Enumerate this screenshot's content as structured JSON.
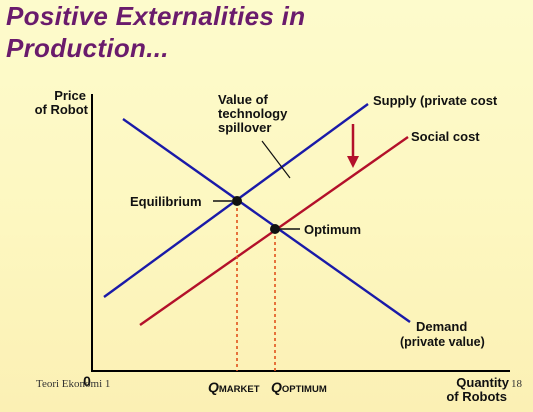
{
  "slide": {
    "title_line1": "Positive Externalities in",
    "title_line2": "Production...",
    "footer_left": "Teori Ekonomi 1",
    "page_number": "18"
  },
  "diagram": {
    "y_axis_label_line1": "Price",
    "y_axis_label_line2": "of Robot",
    "x_axis_label_line1": "Quantity",
    "x_axis_label_line2": "of Robots",
    "origin_label": "0",
    "supply_label": "Supply (private cost",
    "social_cost_label": "Social cost",
    "demand_label_line1": "Demand",
    "demand_label_line2": "(private value)",
    "spillover_label_line1": "Value of",
    "spillover_label_line2": "technology",
    "spillover_label_line3": "spillover",
    "equilibrium_label": "Equilibrium",
    "optimum_label": "Optimum",
    "q_market_main": "Q",
    "q_market_sub": "MARKET",
    "q_optimum_main": "Q",
    "q_optimum_sub": "OPTIMUM",
    "colors": {
      "supply": "#1a1aa8",
      "demand": "#1a1aa8",
      "social_cost": "#b3102a",
      "guides": "#e0521c",
      "arrow": "#b3102a",
      "title": "#6a1b6c"
    }
  }
}
